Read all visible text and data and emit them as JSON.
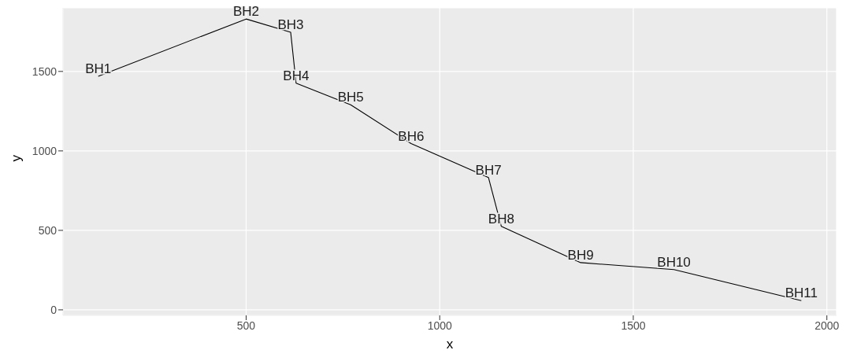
{
  "chart_data": {
    "type": "line",
    "xlabel": "x",
    "ylabel": "y",
    "x": [
      118,
      500,
      615,
      629,
      770,
      926,
      1126,
      1159,
      1364,
      1605,
      1934
    ],
    "series": [
      {
        "color": "#000000",
        "values": [
          1470,
          1830,
          1747,
          1426,
          1290,
          1046,
          832,
          526,
          297,
          253,
          58
        ],
        "value_labels": [
          "BH1",
          "BH2",
          "BH3",
          "BH4",
          "BH5",
          "BH6",
          "BH7",
          "BH8",
          "BH9",
          "BH10",
          "BH11"
        ]
      }
    ],
    "xlim": [
      27,
      2025
    ],
    "ylim": [
      -35,
      1900
    ],
    "xticks": [
      500,
      1000,
      1500,
      2000
    ],
    "yticks": [
      0,
      500,
      1000,
      1500
    ],
    "grid": true,
    "legend": false,
    "marker": "none",
    "line_style": "solid"
  }
}
